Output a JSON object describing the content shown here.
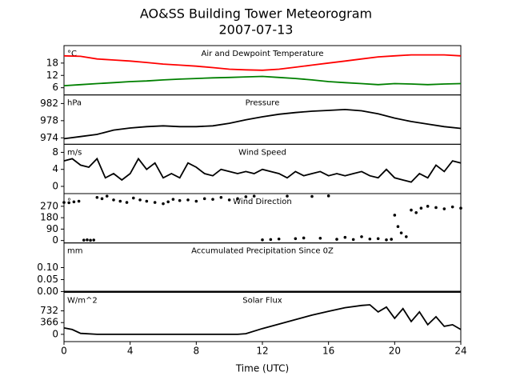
{
  "title": "AO&SS Building Tower Meteorogram",
  "subtitle": "2007-07-13",
  "chart_data": [
    {
      "type": "line",
      "title": "Air and Dewpoint Temperature",
      "unit": "°C",
      "ylim": [
        2.5,
        26.5
      ],
      "yticks": [
        6,
        12,
        18
      ],
      "x": [
        0,
        1,
        2,
        3,
        4,
        5,
        6,
        7,
        8,
        9,
        10,
        11,
        12,
        13,
        14,
        15,
        16,
        17,
        18,
        19,
        20,
        21,
        22,
        23,
        24
      ],
      "series": [
        {
          "color": "#ff0000",
          "values": [
            21.5,
            21.3,
            20,
            19.5,
            19,
            18.3,
            17.5,
            17,
            16.5,
            15.8,
            15,
            14.7,
            14.5,
            15,
            16,
            17,
            18,
            19,
            20,
            21,
            21.5,
            22,
            22,
            22,
            21.5
          ]
        },
        {
          "color": "#008000",
          "values": [
            7,
            7.5,
            8,
            8.5,
            9,
            9.3,
            9.8,
            10.2,
            10.5,
            10.8,
            11,
            11.3,
            11.5,
            11,
            10.5,
            9.8,
            9,
            8.5,
            8,
            7.5,
            8,
            7.8,
            7.5,
            7.8,
            8
          ]
        }
      ]
    },
    {
      "type": "line",
      "title": "Pressure",
      "unit": "hPa",
      "ylim": [
        972.5,
        984
      ],
      "yticks": [
        974,
        978,
        982
      ],
      "x": [
        0,
        1,
        2,
        3,
        4,
        5,
        6,
        7,
        8,
        9,
        10,
        11,
        12,
        13,
        14,
        15,
        16,
        17,
        18,
        19,
        20,
        21,
        22,
        23,
        24
      ],
      "series": [
        {
          "color": "#000000",
          "values": [
            973.8,
            974.3,
            974.8,
            975.8,
            976.3,
            976.6,
            976.8,
            976.6,
            976.6,
            976.8,
            977.4,
            978.2,
            978.9,
            979.5,
            979.9,
            980.2,
            980.4,
            980.6,
            980.3,
            979.6,
            978.6,
            977.8,
            977.2,
            976.6,
            976.2
          ]
        }
      ]
    },
    {
      "type": "line",
      "title": "Wind Speed",
      "unit": "m/s",
      "ylim": [
        -1.7,
        9.9
      ],
      "yticks": [
        0,
        4,
        8
      ],
      "x": [
        0,
        0.5,
        1,
        1.5,
        2,
        2.5,
        3,
        3.5,
        4,
        4.5,
        5,
        5.5,
        6,
        6.5,
        7,
        7.5,
        8,
        8.5,
        9,
        9.5,
        10,
        10.5,
        11,
        11.5,
        12,
        12.5,
        13,
        13.5,
        14,
        14.5,
        15,
        15.5,
        16,
        16.5,
        17,
        17.5,
        18,
        18.5,
        19,
        19.5,
        20,
        20.5,
        21,
        21.5,
        22,
        22.5,
        23,
        23.5,
        24
      ],
      "series": [
        {
          "color": "#000000",
          "values": [
            6,
            6.5,
            5,
            4.5,
            6.5,
            2,
            3,
            1.5,
            3,
            6.5,
            4,
            5.5,
            2,
            3,
            2,
            5.5,
            4.5,
            3,
            2.5,
            4,
            3.5,
            3,
            3.5,
            3,
            4,
            3.5,
            3,
            2,
            3.5,
            2.5,
            3,
            3.5,
            2.5,
            3,
            2.5,
            3,
            3.5,
            2.5,
            2,
            4,
            2,
            1.5,
            1,
            3,
            2,
            5,
            3.5,
            6,
            5.5
          ]
        }
      ]
    },
    {
      "type": "scatter",
      "title": "Wind Direction",
      "unit": "°",
      "ylim": [
        -19,
        370
      ],
      "yticks": [
        0,
        90,
        180,
        270
      ],
      "x": [
        0,
        0.3,
        0.6,
        0.9,
        1.2,
        1.4,
        1.6,
        1.8,
        2,
        2.3,
        2.6,
        3,
        3.4,
        3.8,
        4.2,
        4.6,
        5,
        5.5,
        6,
        6.3,
        6.6,
        7,
        7.5,
        8,
        8.5,
        9,
        9.5,
        10,
        10.5,
        11,
        11.5,
        12,
        12.5,
        13,
        13.5,
        14,
        14.5,
        15,
        15.5,
        16,
        16.5,
        17,
        17.5,
        18,
        18.5,
        19,
        19.5,
        19.8,
        20,
        20.2,
        20.4,
        20.7,
        21,
        21.3,
        21.6,
        22,
        22.5,
        23,
        23.5,
        24
      ],
      "series": [
        {
          "color": "#000000",
          "values": [
            300,
            298,
            305,
            310,
            3,
            5,
            2,
            4,
            340,
            330,
            350,
            320,
            310,
            300,
            335,
            320,
            310,
            300,
            290,
            305,
            325,
            315,
            320,
            310,
            330,
            325,
            340,
            320,
            330,
            345,
            350,
            5,
            8,
            12,
            350,
            15,
            20,
            348,
            18,
            352,
            10,
            25,
            8,
            30,
            12,
            15,
            5,
            10,
            200,
            110,
            60,
            30,
            240,
            220,
            255,
            270,
            260,
            250,
            265,
            255
          ]
        }
      ]
    },
    {
      "type": "line",
      "title": "Accumulated Precipitation Since 0Z",
      "unit": "mm",
      "ylim": [
        -0.003,
        0.203
      ],
      "yticks": [
        {
          "value": 0,
          "label": "0.00"
        },
        {
          "value": 0.05,
          "label": "0.05"
        },
        {
          "value": 0.1,
          "label": "0.10"
        }
      ],
      "x": [
        0,
        24
      ],
      "series": [
        {
          "color": "#000000",
          "values": [
            0,
            0
          ]
        }
      ]
    },
    {
      "type": "line",
      "title": "Solar Flux",
      "unit": "W/m^2",
      "ylim": [
        -227,
        1312
      ],
      "yticks": [
        0,
        366,
        732
      ],
      "x": [
        0,
        0.5,
        1,
        2,
        3,
        4,
        5,
        6,
        7,
        8,
        9,
        10,
        10.5,
        11,
        12,
        13,
        14,
        15,
        16,
        17,
        18,
        18.5,
        19,
        19.5,
        20,
        20.5,
        21,
        21.5,
        22,
        22.5,
        23,
        23.5,
        24
      ],
      "series": [
        {
          "color": "#000000",
          "values": [
            200,
            150,
            30,
            0,
            0,
            0,
            0,
            0,
            0,
            0,
            0,
            0,
            0,
            20,
            180,
            320,
            460,
            600,
            720,
            830,
            900,
            920,
            700,
            850,
            500,
            800,
            400,
            700,
            300,
            550,
            250,
            300,
            150
          ]
        }
      ],
      "xlim": [
        0,
        24
      ],
      "xticks": [
        0,
        4,
        8,
        12,
        16,
        20,
        24
      ],
      "xlabel": "Time (UTC)"
    }
  ]
}
